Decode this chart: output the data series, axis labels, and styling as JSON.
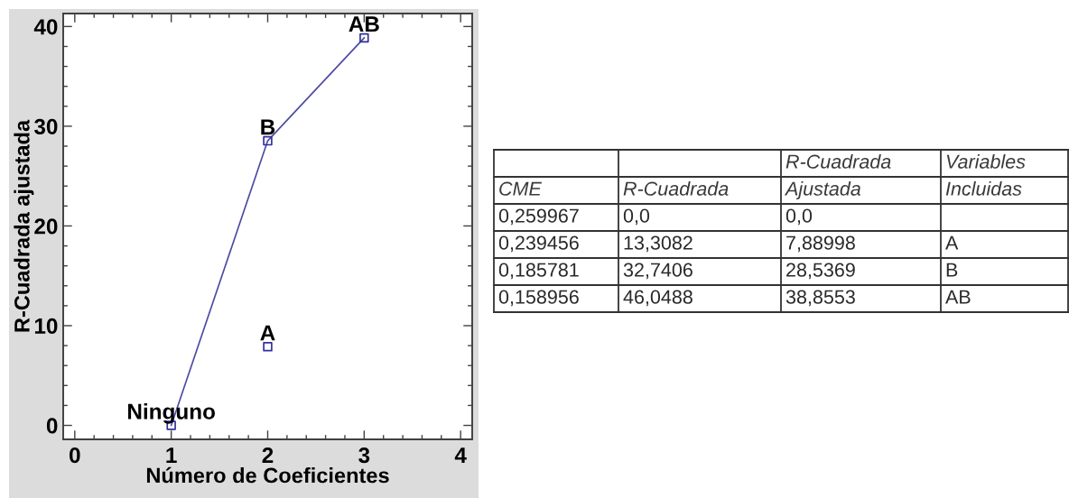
{
  "chart_data": [
    {
      "type": "scatter",
      "xlabel": "Número de Coeficientes",
      "ylabel": "R-Cuadrada ajustada",
      "series": [
        {
          "type": "line",
          "color": "#4b4ba3",
          "x": [
            1,
            2,
            3
          ],
          "values": [
            0,
            28.5369,
            38.8553
          ]
        },
        {
          "type": "scatter",
          "color": "#2f2f9e",
          "marker": "square",
          "x": [
            1,
            2,
            2,
            3
          ],
          "values": [
            0,
            7.88998,
            28.5369,
            38.8553
          ]
        }
      ],
      "xlim": [
        -0.12,
        4.12
      ],
      "ylim": [
        -1.4,
        41.3
      ],
      "xticks": [
        0,
        {
          "value": 0.2,
          "label": null
        },
        {
          "value": 0.4,
          "label": null
        },
        {
          "value": 0.6,
          "label": null
        },
        {
          "value": 0.8,
          "label": null
        },
        1,
        {
          "value": 1.2,
          "label": null
        },
        {
          "value": 1.4,
          "label": null
        },
        {
          "value": 1.6,
          "label": null
        },
        {
          "value": 1.8,
          "label": null
        },
        2,
        {
          "value": 2.2,
          "label": null
        },
        {
          "value": 2.4,
          "label": null
        },
        {
          "value": 2.6,
          "label": null
        },
        {
          "value": 2.8,
          "label": null
        },
        3,
        {
          "value": 3.2,
          "label": null
        },
        {
          "value": 3.4,
          "label": null
        },
        {
          "value": 3.6,
          "label": null
        },
        {
          "value": 3.8,
          "label": null
        },
        4
      ],
      "yticks": [
        0,
        {
          "value": 2,
          "label": null
        },
        {
          "value": 4,
          "label": null
        },
        {
          "value": 6,
          "label": null
        },
        {
          "value": 8,
          "label": null
        },
        10,
        {
          "value": 12,
          "label": null
        },
        {
          "value": 14,
          "label": null
        },
        {
          "value": 16,
          "label": null
        },
        {
          "value": 18,
          "label": null
        },
        20,
        {
          "value": 22,
          "label": null
        },
        {
          "value": 24,
          "label": null
        },
        {
          "value": 26,
          "label": null
        },
        {
          "value": 28,
          "label": null
        },
        30,
        {
          "value": 32,
          "label": null
        },
        {
          "value": 34,
          "label": null
        },
        {
          "value": 36,
          "label": null
        },
        {
          "value": 38,
          "label": null
        },
        40
      ],
      "annotations": [
        {
          "text": "Ninguno",
          "x": 1,
          "y": 0
        },
        {
          "text": "A",
          "x": 2,
          "y": 7.88998
        },
        {
          "text": "B",
          "x": 2,
          "y": 28.5369
        },
        {
          "text": "AB",
          "x": 3,
          "y": 38.8553
        }
      ]
    },
    {
      "type": "other",
      "categories": [
        "CME",
        "R-Cuadrada",
        "R-Cuadrada\nAjustada",
        "Variables\nIncluidas"
      ],
      "cell_labels": [
        [
          "0,259967",
          "0,0",
          "0,0",
          null
        ],
        [
          "0,239456",
          "13,3082",
          "7,88998",
          "A"
        ],
        [
          "0,185781",
          "32,7406",
          "28,5369",
          "B"
        ],
        [
          "0,158956",
          "46,0488",
          "38,8553",
          "AB"
        ]
      ]
    }
  ]
}
